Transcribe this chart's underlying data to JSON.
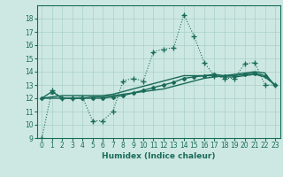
{
  "xlabel": "Humidex (Indice chaleur)",
  "ylabel": "",
  "background_color": "#cde8e2",
  "grid_color": "#afd4cc",
  "line_color": "#1a6b5a",
  "xlim": [
    -0.5,
    23.5
  ],
  "ylim": [
    9,
    19
  ],
  "yticks": [
    9,
    10,
    11,
    12,
    13,
    14,
    15,
    16,
    17,
    18
  ],
  "xticks": [
    0,
    1,
    2,
    3,
    4,
    5,
    6,
    7,
    8,
    9,
    10,
    11,
    12,
    13,
    14,
    15,
    16,
    17,
    18,
    19,
    20,
    21,
    22,
    23
  ],
  "series": [
    {
      "x": [
        0,
        1,
        2,
        3,
        4,
        5,
        6,
        7,
        8,
        9,
        10,
        11,
        12,
        13,
        14,
        15,
        16,
        17,
        18,
        19,
        20,
        21,
        22,
        23
      ],
      "y": [
        9,
        12.6,
        12.0,
        12.0,
        12.1,
        10.3,
        10.3,
        11.0,
        13.3,
        13.5,
        13.3,
        15.5,
        15.7,
        15.8,
        18.3,
        16.7,
        14.7,
        13.7,
        13.5,
        13.5,
        14.6,
        14.7,
        13.0,
        13.0
      ],
      "marker": "+",
      "linestyle": "dotted",
      "markersize": 4,
      "linewidth": 0.8
    },
    {
      "x": [
        0,
        1,
        2,
        3,
        4,
        5,
        6,
        7,
        8,
        9,
        10,
        11,
        12,
        13,
        14,
        15,
        16,
        17,
        18,
        19,
        20,
        21,
        22,
        23
      ],
      "y": [
        12.0,
        12.0,
        12.0,
        12.0,
        12.0,
        12.1,
        12.1,
        12.2,
        12.3,
        12.4,
        12.5,
        12.6,
        12.7,
        12.9,
        13.1,
        13.3,
        13.5,
        13.6,
        13.7,
        13.8,
        13.9,
        14.0,
        13.9,
        12.9
      ],
      "marker": null,
      "linestyle": "solid",
      "markersize": 0,
      "linewidth": 1.0
    },
    {
      "x": [
        0,
        1,
        2,
        3,
        4,
        5,
        6,
        7,
        8,
        9,
        10,
        11,
        12,
        13,
        14,
        15,
        16,
        17,
        18,
        19,
        20,
        21,
        22,
        23
      ],
      "y": [
        12.0,
        12.1,
        12.2,
        12.2,
        12.2,
        12.2,
        12.2,
        12.3,
        12.5,
        12.7,
        12.9,
        13.1,
        13.3,
        13.5,
        13.7,
        13.7,
        13.7,
        13.7,
        13.6,
        13.6,
        13.7,
        13.8,
        13.6,
        13.0
      ],
      "marker": null,
      "linestyle": "solid",
      "markersize": 0,
      "linewidth": 1.0
    },
    {
      "x": [
        0,
        1,
        2,
        3,
        4,
        5,
        6,
        7,
        8,
        9,
        10,
        11,
        12,
        13,
        14,
        15,
        16,
        17,
        18,
        19,
        20,
        21,
        22,
        23
      ],
      "y": [
        12.0,
        12.5,
        12.0,
        12.0,
        12.0,
        12.0,
        12.0,
        12.1,
        12.2,
        12.4,
        12.6,
        12.8,
        13.0,
        13.2,
        13.5,
        13.6,
        13.7,
        13.8,
        13.7,
        13.7,
        13.8,
        13.9,
        13.7,
        13.0
      ],
      "marker": "D",
      "linestyle": "solid",
      "markersize": 2,
      "linewidth": 1.0
    }
  ]
}
